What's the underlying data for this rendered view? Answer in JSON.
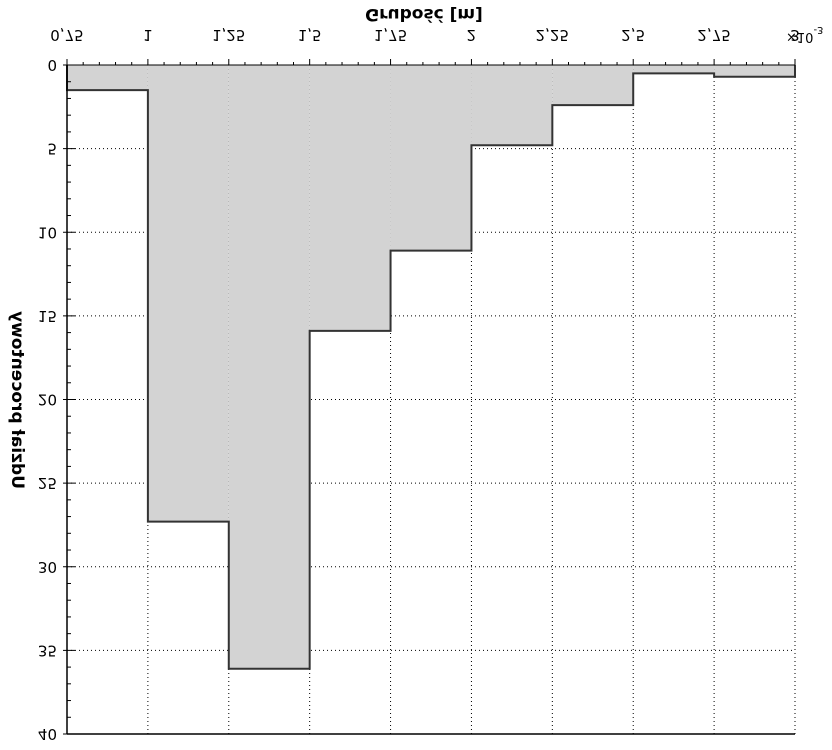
{
  "chart_data": {
    "type": "area",
    "title": "",
    "xlabel": "Grubość [m]",
    "ylabel": "Udział procentowy",
    "x_exponent_label": "×10",
    "x_exponent_power": "-3",
    "xlim": [
      0.75,
      3.0
    ],
    "ylim": [
      0,
      40
    ],
    "grid": true,
    "mirrored": true,
    "colors": {
      "fill": "#d3d3d3",
      "stroke": "#333333",
      "grid": "#000000",
      "axis": "#000000"
    },
    "x_ticks": [
      {
        "value": 0.75,
        "label": "0,75"
      },
      {
        "value": 1.0,
        "label": "1"
      },
      {
        "value": 1.25,
        "label": "1,25"
      },
      {
        "value": 1.5,
        "label": "1,5"
      },
      {
        "value": 1.75,
        "label": "1,75"
      },
      {
        "value": 2.0,
        "label": "2"
      },
      {
        "value": 2.25,
        "label": "2,25"
      },
      {
        "value": 2.5,
        "label": "2,5"
      },
      {
        "value": 2.75,
        "label": "2,75"
      },
      {
        "value": 3.0,
        "label": "3"
      }
    ],
    "y_ticks": [
      {
        "value": 0,
        "label": "0"
      },
      {
        "value": 5,
        "label": "5"
      },
      {
        "value": 10,
        "label": "10"
      },
      {
        "value": 15,
        "label": "15"
      },
      {
        "value": 20,
        "label": "20"
      },
      {
        "value": 25,
        "label": "25"
      },
      {
        "value": 30,
        "label": "30"
      },
      {
        "value": 35,
        "label": "35"
      },
      {
        "value": 40,
        "label": "40"
      }
    ],
    "bins": [
      {
        "x0": 0.75,
        "x1": 1.0,
        "value": 1.5
      },
      {
        "x0": 1.0,
        "x1": 1.25,
        "value": 27.3
      },
      {
        "x0": 1.25,
        "x1": 1.5,
        "value": 36.1
      },
      {
        "x0": 1.5,
        "x1": 1.75,
        "value": 15.9
      },
      {
        "x0": 1.75,
        "x1": 2.0,
        "value": 11.1
      },
      {
        "x0": 2.0,
        "x1": 2.25,
        "value": 4.8
      },
      {
        "x0": 2.25,
        "x1": 2.5,
        "value": 2.4
      },
      {
        "x0": 2.5,
        "x1": 2.75,
        "value": 0.5
      },
      {
        "x0": 2.75,
        "x1": 3.0,
        "value": 0.7
      }
    ]
  }
}
